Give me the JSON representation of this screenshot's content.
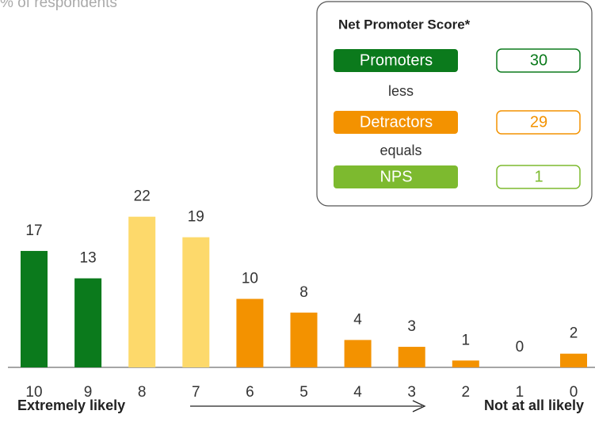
{
  "chart_data": {
    "type": "bar",
    "title": "% of respondents",
    "categories": [
      "10",
      "9",
      "8",
      "7",
      "6",
      "5",
      "4",
      "3",
      "2",
      "1",
      "0"
    ],
    "values": [
      17,
      13,
      22,
      19,
      10,
      8,
      4,
      3,
      1,
      0,
      2
    ],
    "colors": [
      "#0b7a1c",
      "#0b7a1c",
      "#fdd96b",
      "#fdd96b",
      "#f39200",
      "#f39200",
      "#f39200",
      "#f39200",
      "#f39200",
      "#f39200",
      "#f39200"
    ],
    "x_label_left": "Extremely likely",
    "x_label_right": "Not at all likely",
    "nps_box": {
      "title": "Net Promoter Score*",
      "rows": [
        {
          "label": "Promoters",
          "value": 30,
          "color": "#0b7a1c"
        },
        {
          "label": "Detractors",
          "value": 29,
          "color": "#f39200"
        },
        {
          "label": "NPS",
          "value": 1,
          "color": "#7dba2f"
        }
      ],
      "connectors": [
        "less",
        "equals"
      ]
    }
  }
}
